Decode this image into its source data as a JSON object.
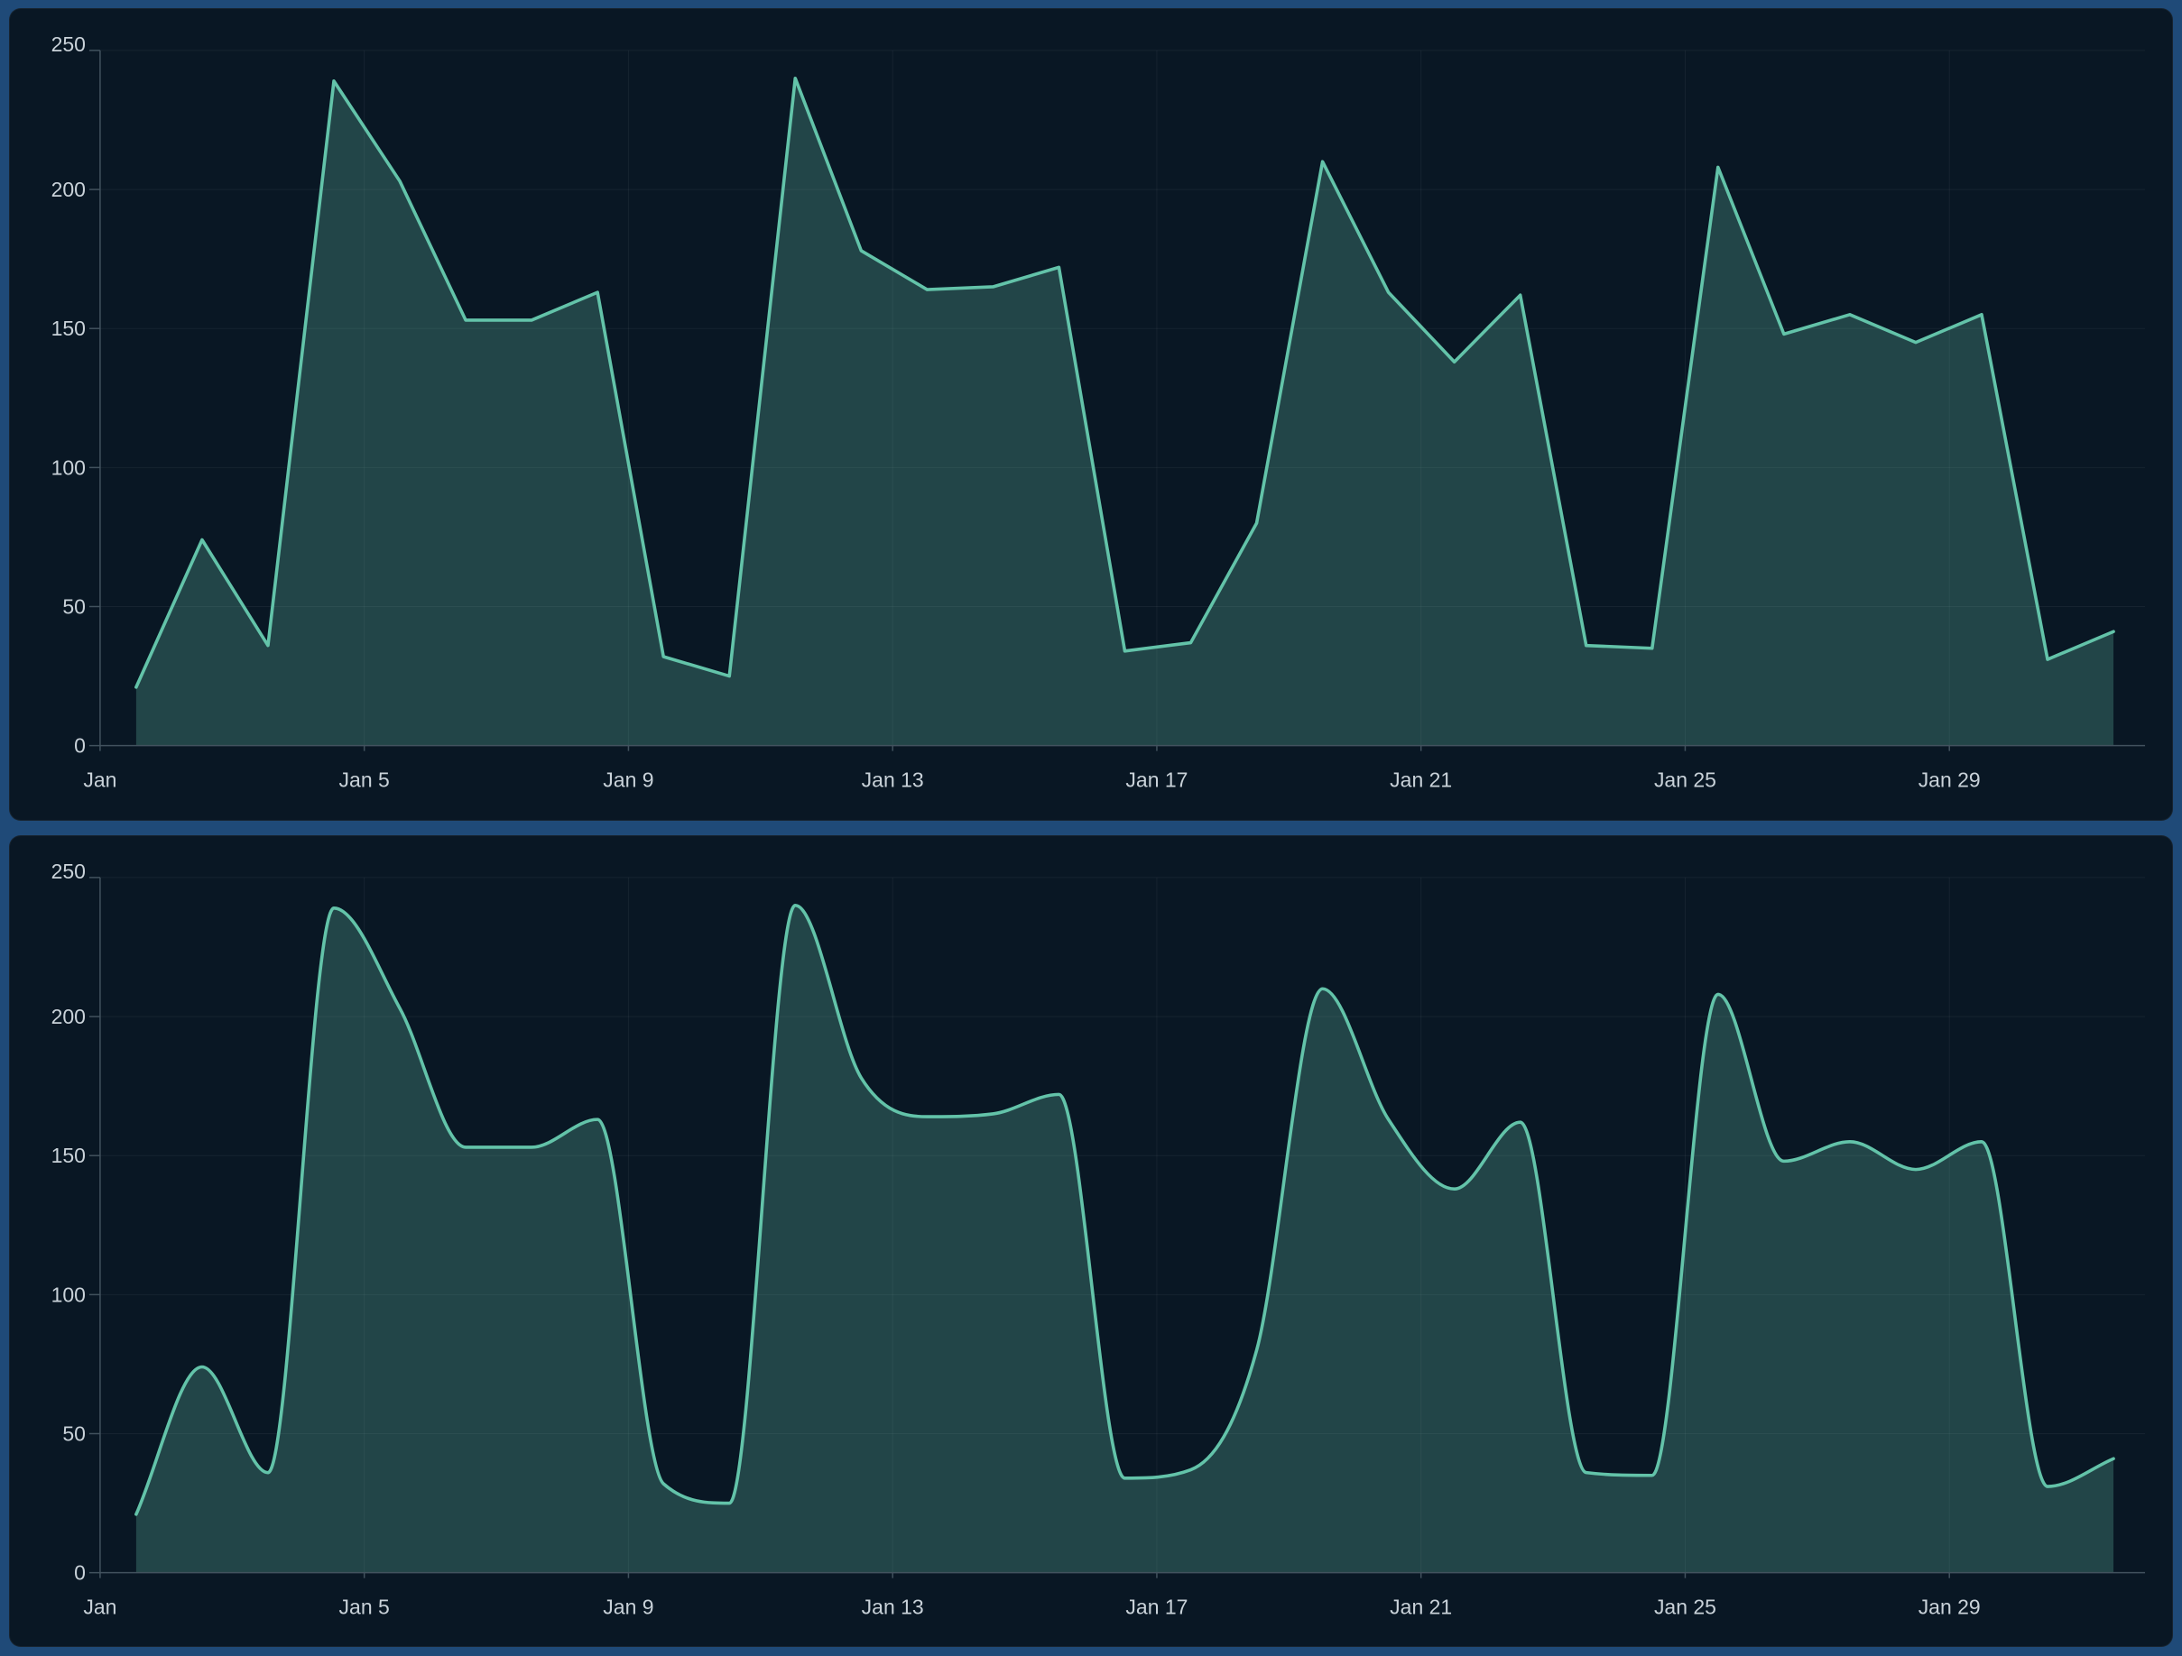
{
  "page": {
    "background_color": "#1F4A78",
    "panel_color": "#091724",
    "panel_border_color": "rgba(255,255,255,0.06)"
  },
  "chart_data": [
    {
      "type": "area",
      "interpolation": "linear",
      "title": "",
      "xlabel": "",
      "ylabel": "",
      "x": [
        "Jan 1",
        "Jan 2",
        "Jan 3",
        "Jan 4",
        "Jan 5",
        "Jan 6",
        "Jan 7",
        "Jan 8",
        "Jan 9",
        "Jan 10",
        "Jan 11",
        "Jan 12",
        "Jan 13",
        "Jan 14",
        "Jan 15",
        "Jan 16",
        "Jan 17",
        "Jan 18",
        "Jan 19",
        "Jan 20",
        "Jan 21",
        "Jan 22",
        "Jan 23",
        "Jan 24",
        "Jan 25",
        "Jan 26",
        "Jan 27",
        "Jan 28",
        "Jan 29",
        "Jan 30",
        "Jan 31"
      ],
      "values": [
        21,
        74,
        36,
        239,
        203,
        153,
        153,
        163,
        32,
        25,
        240,
        178,
        164,
        165,
        172,
        34,
        37,
        80,
        210,
        163,
        138,
        162,
        36,
        35,
        208,
        148,
        155,
        145,
        155,
        31,
        41
      ],
      "ylim": [
        0,
        250
      ],
      "y_ticks": [
        0,
        50,
        100,
        150,
        200,
        250
      ],
      "x_tick_days": [
        1,
        5,
        9,
        13,
        17,
        21,
        25,
        29
      ],
      "x_tick_labels": [
        "Jan",
        "Jan 5",
        "Jan 9",
        "Jan 13",
        "Jan 17",
        "Jan 21",
        "Jan 25",
        "Jan 29"
      ],
      "grid": true,
      "legend": "none",
      "colors": {
        "line": "#63C3A9",
        "area_fill": "rgba(105,195,170,0.27)",
        "axis": "#42525E",
        "gridline": "rgba(255,255,255,0.055)",
        "tick_label": "#C9D2D9"
      }
    },
    {
      "type": "area",
      "interpolation": "smooth-monotone",
      "title": "",
      "xlabel": "",
      "ylabel": "",
      "x": [
        "Jan 1",
        "Jan 2",
        "Jan 3",
        "Jan 4",
        "Jan 5",
        "Jan 6",
        "Jan 7",
        "Jan 8",
        "Jan 9",
        "Jan 10",
        "Jan 11",
        "Jan 12",
        "Jan 13",
        "Jan 14",
        "Jan 15",
        "Jan 16",
        "Jan 17",
        "Jan 18",
        "Jan 19",
        "Jan 20",
        "Jan 21",
        "Jan 22",
        "Jan 23",
        "Jan 24",
        "Jan 25",
        "Jan 26",
        "Jan 27",
        "Jan 28",
        "Jan 29",
        "Jan 30",
        "Jan 31"
      ],
      "values": [
        21,
        74,
        36,
        239,
        203,
        153,
        153,
        163,
        32,
        25,
        240,
        178,
        164,
        165,
        172,
        34,
        37,
        80,
        210,
        163,
        138,
        162,
        36,
        35,
        208,
        148,
        155,
        145,
        155,
        31,
        41
      ],
      "ylim": [
        0,
        250
      ],
      "y_ticks": [
        0,
        50,
        100,
        150,
        200,
        250
      ],
      "x_tick_days": [
        1,
        5,
        9,
        13,
        17,
        21,
        25,
        29
      ],
      "x_tick_labels": [
        "Jan",
        "Jan 5",
        "Jan 9",
        "Jan 13",
        "Jan 17",
        "Jan 21",
        "Jan 25",
        "Jan 29"
      ],
      "grid": true,
      "legend": "none",
      "colors": {
        "line": "#63C3A9",
        "area_fill": "rgba(105,195,170,0.27)",
        "axis": "#42525E",
        "gridline": "rgba(255,255,255,0.055)",
        "tick_label": "#C9D2D9"
      }
    }
  ]
}
